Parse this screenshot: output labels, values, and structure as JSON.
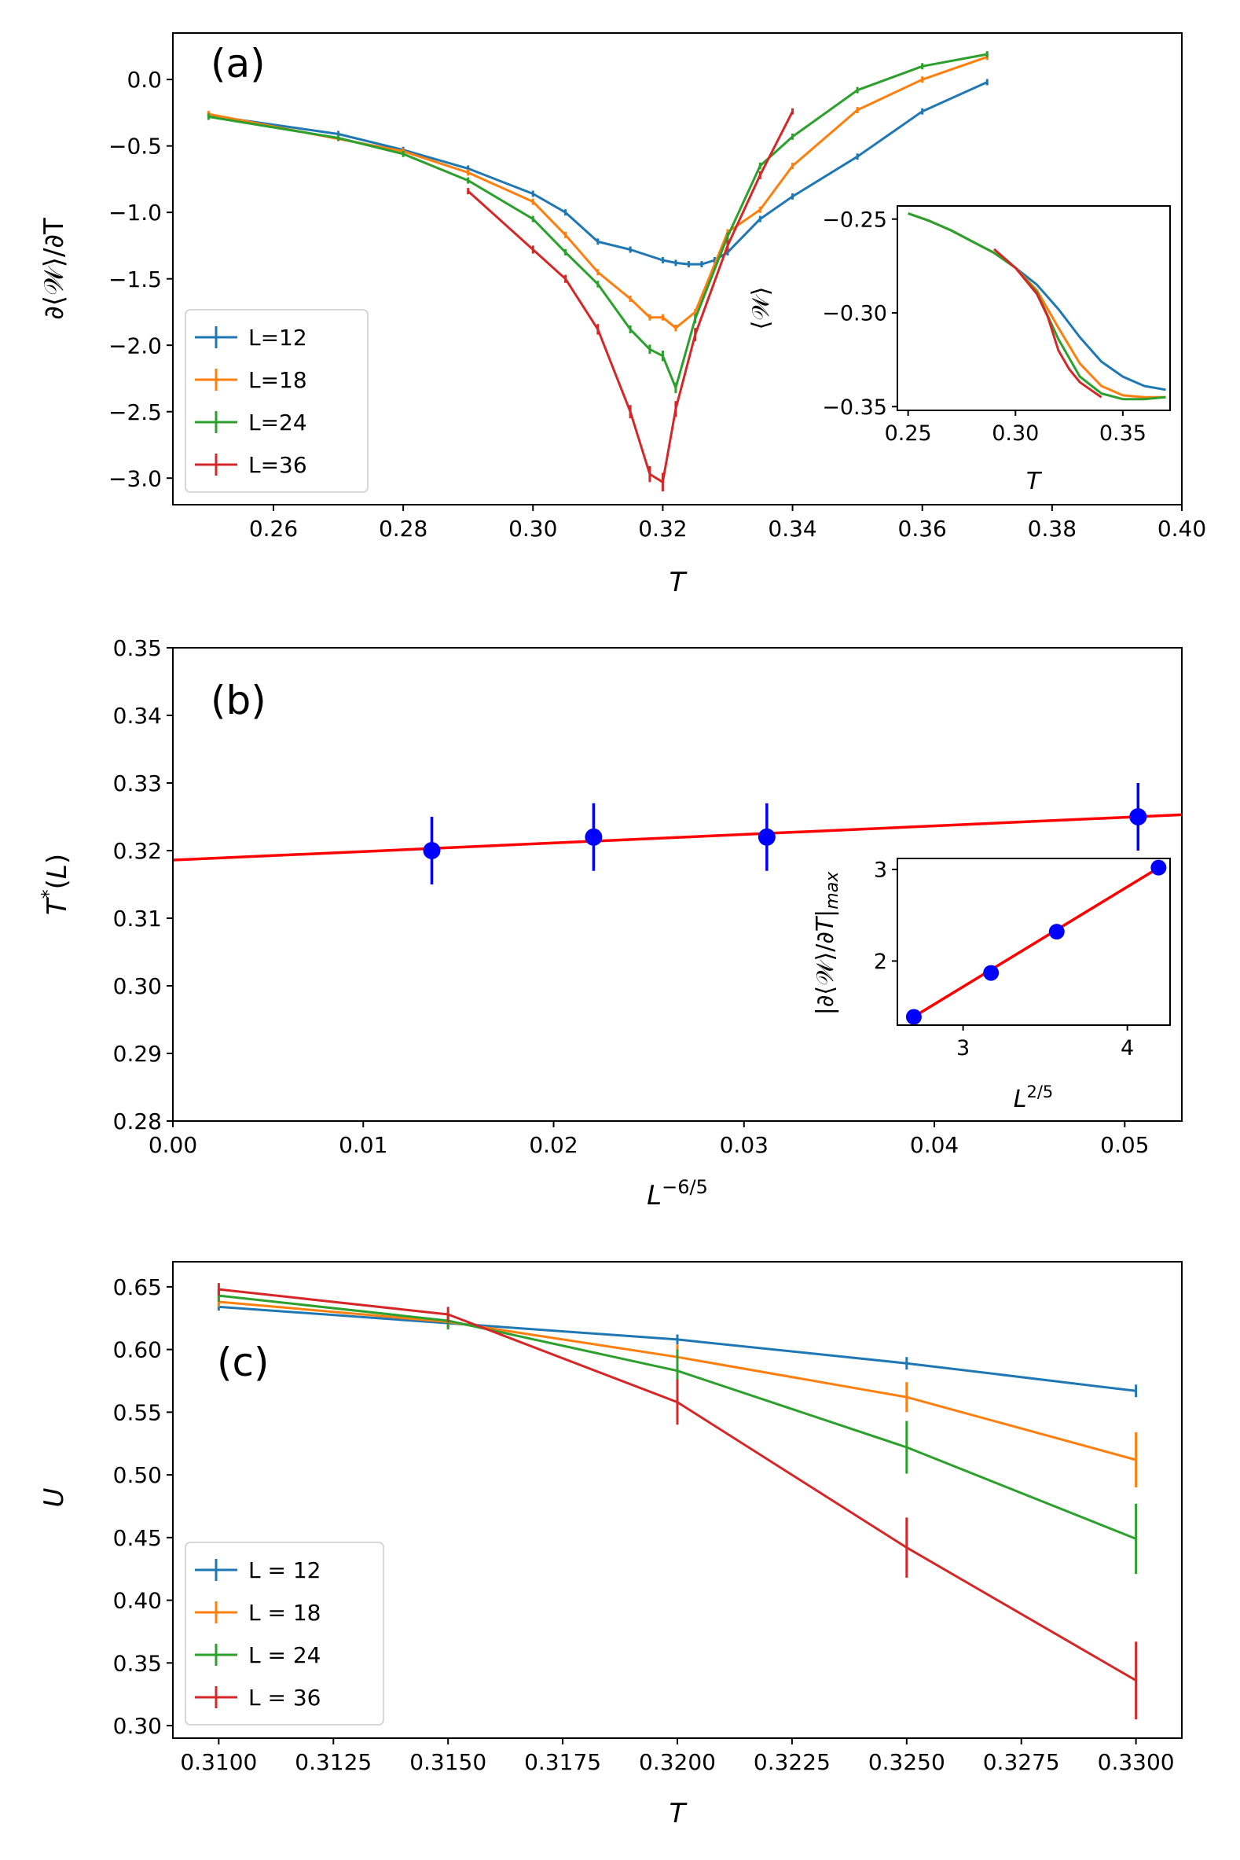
{
  "figure": {
    "panels": [
      {
        "id": "a",
        "tag": "(a)",
        "xlabel": "T",
        "ylabel": "∂⟨𝒲⟩/∂T",
        "xlim": [
          0.2445,
          0.4
        ],
        "ylim": [
          -3.2,
          0.35
        ],
        "xticks": [
          0.26,
          0.28,
          0.3,
          0.32,
          0.34,
          0.36,
          0.38,
          0.4
        ],
        "xtick_labels": [
          "0.26",
          "0.28",
          "0.30",
          "0.32",
          "0.34",
          "0.36",
          "0.38",
          "0.40"
        ],
        "yticks": [
          0.0,
          -0.5,
          -1.0,
          -1.5,
          -2.0,
          -2.5,
          -3.0
        ],
        "ytick_labels": [
          "0.0",
          "−0.5",
          "−1.0",
          "−1.5",
          "−2.0",
          "−2.5",
          "−3.0"
        ],
        "legend": {
          "position": "lower left",
          "entries": [
            "L=12",
            "L=18",
            "L=24",
            "L=36"
          ]
        },
        "inset": {
          "xlabel": "T",
          "ylabel": "⟨𝒲⟩",
          "xlim": [
            0.245,
            0.372
          ],
          "ylim": [
            -0.352,
            -0.243
          ],
          "xticks": [
            0.25,
            0.3,
            0.35
          ],
          "xtick_labels": [
            "0.25",
            "0.30",
            "0.35"
          ],
          "yticks": [
            -0.25,
            -0.3,
            -0.35
          ],
          "ytick_labels": [
            "−0.25",
            "−0.30",
            "−0.35"
          ]
        }
      },
      {
        "id": "b",
        "tag": "(b)",
        "xlabel": "L−6/5",
        "ylabel": "T*(L)",
        "xlim": [
          0.0,
          0.053
        ],
        "ylim": [
          0.28,
          0.35
        ],
        "xticks": [
          0.0,
          0.01,
          0.02,
          0.03,
          0.04,
          0.05
        ],
        "xtick_labels": [
          "0.00",
          "0.01",
          "0.02",
          "0.03",
          "0.04",
          "0.05"
        ],
        "yticks": [
          0.28,
          0.29,
          0.3,
          0.31,
          0.32,
          0.33,
          0.34,
          0.35
        ],
        "ytick_labels": [
          "0.28",
          "0.29",
          "0.30",
          "0.31",
          "0.32",
          "0.33",
          "0.34",
          "0.35"
        ],
        "inset": {
          "xlabel": "L2/5",
          "ylabel": "|∂⟨𝒲⟩/∂T|max",
          "xlim": [
            2.6,
            4.26
          ],
          "ylim": [
            1.3,
            3.12
          ],
          "xticks": [
            3,
            4
          ],
          "xtick_labels": [
            "3",
            "4"
          ],
          "yticks": [
            2,
            3
          ],
          "ytick_labels": [
            "2",
            "3"
          ]
        }
      },
      {
        "id": "c",
        "tag": "(c)",
        "xlabel": "T",
        "ylabel": "U",
        "xlim": [
          0.309,
          0.331
        ],
        "ylim": [
          0.29,
          0.67
        ],
        "xticks": [
          0.31,
          0.3125,
          0.315,
          0.3175,
          0.32,
          0.3225,
          0.325,
          0.3275,
          0.33
        ],
        "xtick_labels": [
          "0.3100",
          "0.3125",
          "0.3150",
          "0.3175",
          "0.3200",
          "0.3225",
          "0.3250",
          "0.3275",
          "0.3300"
        ],
        "yticks": [
          0.3,
          0.35,
          0.4,
          0.45,
          0.5,
          0.55,
          0.6,
          0.65
        ],
        "ytick_labels": [
          "0.30",
          "0.35",
          "0.40",
          "0.45",
          "0.50",
          "0.55",
          "0.60",
          "0.65"
        ],
        "legend": {
          "position": "lower left",
          "entries": [
            "L = 12",
            "L = 18",
            "L = 24",
            "L = 36"
          ]
        }
      }
    ]
  },
  "chart_data": [
    {
      "type": "line",
      "panel": "a",
      "xlabel": "T",
      "ylabel": "∂⟨𝒲⟩/∂T",
      "series": [
        {
          "name": "L=12",
          "color": "#1f77b4",
          "x": [
            0.25,
            0.27,
            0.28,
            0.29,
            0.3,
            0.305,
            0.31,
            0.315,
            0.32,
            0.322,
            0.324,
            0.326,
            0.328,
            0.33,
            0.335,
            0.34,
            0.35,
            0.36,
            0.37
          ],
          "y": [
            -0.27,
            -0.41,
            -0.53,
            -0.67,
            -0.86,
            -1.0,
            -1.22,
            -1.28,
            -1.36,
            -1.38,
            -1.39,
            -1.39,
            -1.36,
            -1.3,
            -1.05,
            -0.88,
            -0.58,
            -0.24,
            -0.02
          ],
          "err": [
            0.005,
            0.005,
            0.005,
            0.006,
            0.008,
            0.01,
            0.008,
            0.008,
            0.008,
            0.008,
            0.008,
            0.008,
            0.008,
            0.008,
            0.006,
            0.006,
            0.005,
            0.005,
            0.005
          ]
        },
        {
          "name": "L=18",
          "color": "#ff7f0e",
          "x": [
            0.25,
            0.28,
            0.29,
            0.3,
            0.305,
            0.31,
            0.315,
            0.318,
            0.32,
            0.322,
            0.325,
            0.33,
            0.335,
            0.34,
            0.35,
            0.36,
            0.37
          ],
          "y": [
            -0.26,
            -0.54,
            -0.7,
            -0.92,
            -1.17,
            -1.45,
            -1.65,
            -1.79,
            -1.79,
            -1.87,
            -1.75,
            -1.15,
            -0.98,
            -0.65,
            -0.23,
            0.0,
            0.17
          ],
          "err": [
            0.005,
            0.006,
            0.008,
            0.01,
            0.012,
            0.015,
            0.018,
            0.02,
            0.02,
            0.025,
            0.02,
            0.015,
            0.012,
            0.01,
            0.008,
            0.006,
            0.005
          ]
        },
        {
          "name": "L=24",
          "color": "#2ca02c",
          "x": [
            0.25,
            0.27,
            0.28,
            0.29,
            0.3,
            0.305,
            0.31,
            0.315,
            0.318,
            0.32,
            0.322,
            0.325,
            0.33,
            0.335,
            0.34,
            0.35,
            0.36,
            0.37
          ],
          "y": [
            -0.28,
            -0.44,
            -0.56,
            -0.76,
            -1.05,
            -1.3,
            -1.54,
            -1.88,
            -2.03,
            -2.08,
            -2.32,
            -1.8,
            -1.18,
            -0.65,
            -0.43,
            -0.08,
            0.1,
            0.19
          ],
          "err": [
            0.005,
            0.006,
            0.008,
            0.01,
            0.015,
            0.02,
            0.025,
            0.03,
            0.035,
            0.04,
            0.04,
            0.035,
            0.03,
            0.025,
            0.02,
            0.01,
            0.008,
            0.006
          ]
        },
        {
          "name": "L=36",
          "color": "#d62728",
          "x": [
            0.29,
            0.3,
            0.305,
            0.31,
            0.315,
            0.318,
            0.32,
            0.322,
            0.325,
            0.33,
            0.335,
            0.34
          ],
          "y": [
            -0.84,
            -1.28,
            -1.5,
            -1.88,
            -2.5,
            -2.97,
            -3.03,
            -2.48,
            -1.92,
            -1.25,
            -0.72,
            -0.24
          ],
          "err": [
            0.02,
            0.03,
            0.03,
            0.04,
            0.05,
            0.06,
            0.07,
            0.06,
            0.05,
            0.04,
            0.03,
            0.02
          ]
        }
      ]
    },
    {
      "type": "line",
      "panel": "a-inset",
      "xlabel": "T",
      "ylabel": "⟨𝒲⟩",
      "series": [
        {
          "name": "L=12",
          "color": "#1f77b4",
          "x": [
            0.25,
            0.26,
            0.27,
            0.28,
            0.29,
            0.3,
            0.31,
            0.32,
            0.33,
            0.34,
            0.35,
            0.36,
            0.37
          ],
          "y": [
            -0.247,
            -0.251,
            -0.256,
            -0.262,
            -0.268,
            -0.276,
            -0.285,
            -0.298,
            -0.313,
            -0.326,
            -0.334,
            -0.339,
            -0.341
          ]
        },
        {
          "name": "L=18",
          "color": "#ff7f0e",
          "x": [
            0.25,
            0.26,
            0.27,
            0.28,
            0.29,
            0.3,
            0.31,
            0.32,
            0.33,
            0.34,
            0.35,
            0.36,
            0.37
          ],
          "y": [
            -0.247,
            -0.251,
            -0.256,
            -0.262,
            -0.268,
            -0.276,
            -0.288,
            -0.308,
            -0.327,
            -0.339,
            -0.344,
            -0.345,
            -0.345
          ]
        },
        {
          "name": "L=24",
          "color": "#2ca02c",
          "x": [
            0.25,
            0.26,
            0.27,
            0.28,
            0.29,
            0.3,
            0.31,
            0.32,
            0.33,
            0.34,
            0.35,
            0.36,
            0.37
          ],
          "y": [
            -0.247,
            -0.251,
            -0.256,
            -0.262,
            -0.268,
            -0.276,
            -0.289,
            -0.314,
            -0.334,
            -0.343,
            -0.346,
            -0.346,
            -0.345
          ]
        },
        {
          "name": "L=36",
          "color": "#d62728",
          "x": [
            0.29,
            0.3,
            0.31,
            0.315,
            0.32,
            0.325,
            0.33,
            0.335,
            0.34
          ],
          "y": [
            -0.266,
            -0.276,
            -0.29,
            -0.302,
            -0.32,
            -0.33,
            -0.337,
            -0.341,
            -0.345
          ]
        }
      ]
    },
    {
      "type": "scatter",
      "panel": "b",
      "xlabel": "L−6/5",
      "ylabel": "T*(L)",
      "series": [
        {
          "name": "data",
          "color": "#0000ff",
          "x": [
            0.0136,
            0.0221,
            0.0312,
            0.0507
          ],
          "y": [
            0.32,
            0.322,
            0.322,
            0.325
          ],
          "err": [
            0.005,
            0.005,
            0.005,
            0.005
          ]
        },
        {
          "name": "fit",
          "color": "#ff0000",
          "x": [
            0.0,
            0.053
          ],
          "y": [
            0.3186,
            0.3253
          ],
          "style": "line"
        }
      ]
    },
    {
      "type": "scatter",
      "panel": "b-inset",
      "xlabel": "L2/5",
      "ylabel": "|∂⟨𝒲⟩/∂T|max",
      "series": [
        {
          "name": "data",
          "color": "#0000ff",
          "x": [
            2.7,
            3.17,
            3.57,
            4.19
          ],
          "y": [
            1.39,
            1.87,
            2.32,
            3.02
          ]
        },
        {
          "name": "fit",
          "color": "#ff0000",
          "x": [
            2.68,
            4.21
          ],
          "y": [
            1.37,
            3.04
          ],
          "style": "line"
        }
      ]
    },
    {
      "type": "line",
      "panel": "c",
      "xlabel": "T",
      "ylabel": "U",
      "series": [
        {
          "name": "L = 12",
          "color": "#1f77b4",
          "x": [
            0.31,
            0.315,
            0.32,
            0.325,
            0.33
          ],
          "y": [
            0.634,
            0.621,
            0.608,
            0.589,
            0.567
          ],
          "err": [
            0.003,
            0.003,
            0.004,
            0.005,
            0.005
          ]
        },
        {
          "name": "L = 18",
          "color": "#ff7f0e",
          "x": [
            0.31,
            0.315,
            0.32,
            0.325,
            0.33
          ],
          "y": [
            0.638,
            0.622,
            0.594,
            0.562,
            0.512
          ],
          "err": [
            0.004,
            0.005,
            0.01,
            0.012,
            0.022
          ]
        },
        {
          "name": "L = 24",
          "color": "#2ca02c",
          "x": [
            0.31,
            0.315,
            0.32,
            0.325,
            0.33
          ],
          "y": [
            0.643,
            0.623,
            0.583,
            0.522,
            0.449
          ],
          "err": [
            0.005,
            0.007,
            0.017,
            0.021,
            0.028
          ]
        },
        {
          "name": "L = 36",
          "color": "#d62728",
          "x": [
            0.31,
            0.315,
            0.32,
            0.325,
            0.33
          ],
          "y": [
            0.648,
            0.628,
            0.558,
            0.442,
            0.336
          ],
          "err": [
            0.005,
            0.006,
            0.018,
            0.024,
            0.031
          ]
        }
      ]
    }
  ]
}
